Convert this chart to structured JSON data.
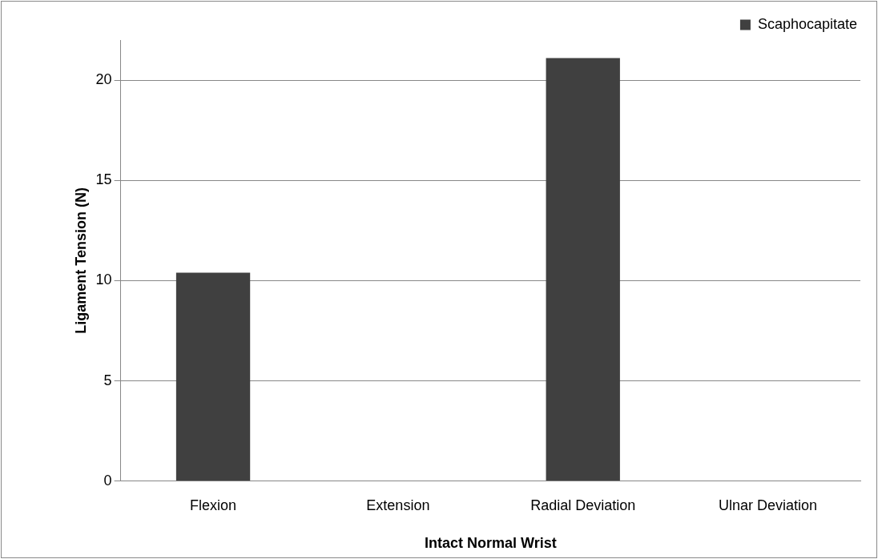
{
  "chart_data": {
    "type": "bar",
    "xlabel": "Intact Normal Wrist",
    "ylabel": "Ligament Tension (N)",
    "categories": [
      "Flexion",
      "Extension",
      "Radial Deviation",
      "Ulnar Deviation"
    ],
    "series": [
      {
        "name": "Scaphocapitate",
        "color": "#404040",
        "values": [
          10.4,
          0,
          21.1,
          0
        ]
      }
    ],
    "ylim": [
      0,
      22
    ],
    "yticks": [
      0,
      5,
      10,
      15,
      20
    ],
    "grid": "y",
    "legend": "top right"
  }
}
